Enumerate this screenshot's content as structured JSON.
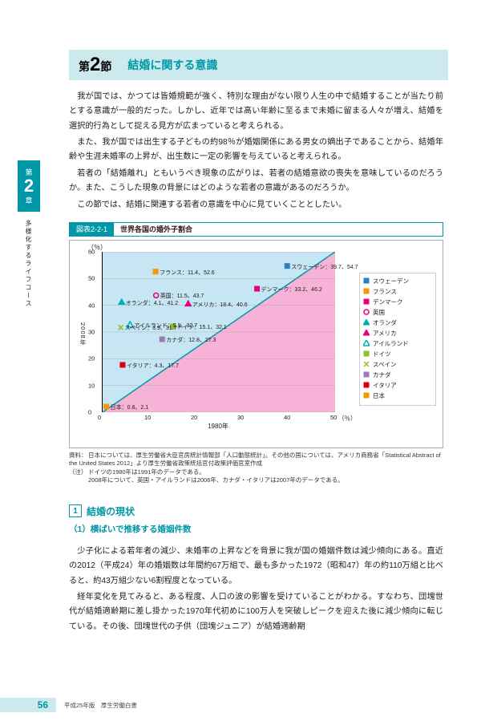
{
  "header": {
    "section_prefix": "第",
    "section_number": "2",
    "section_suffix": "節",
    "section_title": "結婚に関する意識"
  },
  "sidebar": {
    "chapter_prefix": "第",
    "chapter_number": "2",
    "chapter_suffix": "章",
    "vertical_text": "多様化するライフコース"
  },
  "body_paragraphs": [
    "我が国では、かつては皆婚規範が強く、特別な理由がない限り人生の中で結婚することが当たり前とする意識が一般的だった。しかし、近年では高い年齢に至るまで未婚に留まる人々が増え、結婚を選択的行為として捉える見方が広まっていると考えられる。",
    "また、我が国では出生する子どもの約98％が婚姻関係にある男女の嫡出子であることから、結婚年齢や生涯未婚率の上昇が、出生数に一定の影響を与えていると考えられる。",
    "若者の「結婚離れ」ともいうべき現象の広がりは、若者の結婚意欲の喪失を意味しているのだろうか。また、こうした現象の背景にはどのような若者の意識があるのだろうか。",
    "この節では、結婚に関連する若者の意識を中心に見ていくこととしたい。"
  ],
  "figure": {
    "tag": "図表2-2-1",
    "title": "世界各国の婚外子割合",
    "y_unit": "（％）",
    "x_year_label": "1980年",
    "x_unit": "（％）",
    "y_axis_label": "2008年",
    "xlim": [
      0,
      50
    ],
    "ylim": [
      0,
      60
    ],
    "ytick_step": 10,
    "xtick_step": 10,
    "region_left_color": "#c5e6f2",
    "region_right_color": "#f7b3d7",
    "diagonal_color": "#0097a8",
    "countries": [
      {
        "name": "スウェーデン",
        "x1980": 39.7,
        "x2008": 54.7,
        "color": "#2e7fc2",
        "marker": "square"
      },
      {
        "name": "フランス",
        "x1980": 11.4,
        "x2008": 52.6,
        "color": "#f39800",
        "marker": "square"
      },
      {
        "name": "デンマーク",
        "x1980": 33.2,
        "x2008": 46.2,
        "color": "#e4007f",
        "marker": "square"
      },
      {
        "name": "英国",
        "x1980": 11.5,
        "x2008": 43.7,
        "color": "#e4007f",
        "marker": "circle-open"
      },
      {
        "name": "オランダ",
        "x1980": 4.1,
        "x2008": 41.2,
        "color": "#00aeb5",
        "marker": "triangle"
      },
      {
        "name": "アメリカ",
        "x1980": 18.4,
        "x2008": 40.6,
        "color": "#e4007f",
        "marker": "triangle"
      },
      {
        "name": "アイルランド",
        "x1980": 5.9,
        "x2008": 32.7,
        "color": "#00aeb5",
        "marker": "triangle-open"
      },
      {
        "name": "ドイツ",
        "x1980": 15.1,
        "x2008": 32.1,
        "color": "#8dc21f",
        "marker": "square"
      },
      {
        "name": "スペイン",
        "x1980": 3.9,
        "x2008": 31.7,
        "color": "#8dc21f",
        "marker": "x"
      },
      {
        "name": "カナダ",
        "x1980": 12.8,
        "x2008": 27.3,
        "color": "#9b7cb6",
        "marker": "square"
      },
      {
        "name": "イタリア",
        "x1980": 4.3,
        "x2008": 17.7,
        "color": "#d7000f",
        "marker": "square"
      },
      {
        "name": "日本",
        "x1980": 0.8,
        "x2008": 2.1,
        "color": "#f39800",
        "marker": "square"
      }
    ],
    "notes_label_1": "資料：",
    "notes_1": "日本については、厚生労働省大臣官房統計情報部「人口動態統計」。その他の国については、アメリカ商務省「Statistical Abstract of the United States 2012」より厚生労働省政策統括官付政策評価官室作成",
    "notes_label_2": "（注）",
    "notes_2a": "ドイツの1980年は1991年のデータである。",
    "notes_2b": "2008年について、英国・アイルランドは2006年、カナダ・イタリアは2007年のデータである。"
  },
  "section1": {
    "number": "1",
    "heading": "結婚の現状",
    "subheading": "（1）横ばいで推移する婚姻件数",
    "paragraphs": [
      "少子化による若年者の減少、未婚率の上昇などを背景に我が国の婚姻件数は減少傾向にある。直近の2012（平成24）年の婚姻数は年間約67万組で、最も多かった1972（昭和47）年の約110万組と比べると、約43万組少ない6割程度となっている。",
      "経年変化を見てみると、ある程度、人口の波の影響を受けていることがわかる。すなわち、団塊世代が結婚適齢期に差し掛かった1970年代初めに100万人を突破しピークを迎えた後に減少傾向に転じている。その後、団塊世代の子供（団塊ジュニア）が結婚適齢期"
    ]
  },
  "footer": {
    "page_number": "56",
    "source": "平成25年版　厚生労働白書"
  }
}
